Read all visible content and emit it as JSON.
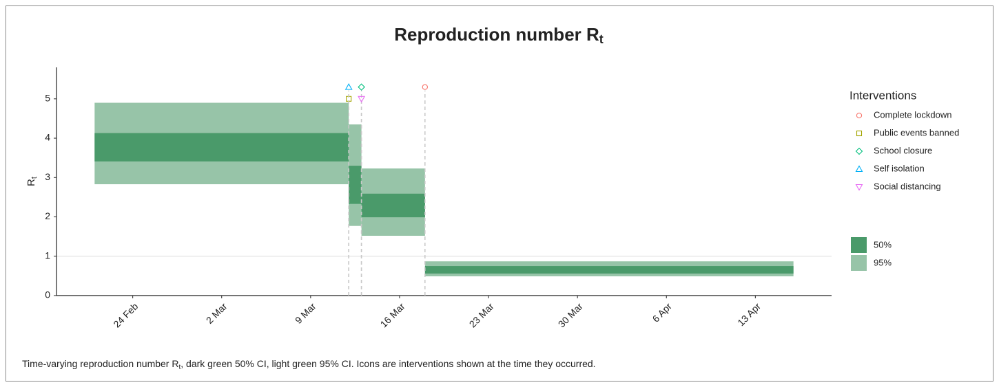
{
  "chart_data": {
    "type": "band",
    "title": "Reproduction number R",
    "title_sub": "t",
    "y_label": "R",
    "y_label_sub": "t",
    "caption_start": "Time-varying reproduction number R",
    "caption_sub": "t",
    "caption_end": ", dark green 50% CI, light green 95% CI. Icons are interventions shown at the time they occurred.",
    "xlim": [
      "02-18",
      "04-19"
    ],
    "xticks": [
      {
        "value": "02-24",
        "label": "24 Feb"
      },
      {
        "value": "03-02",
        "label": "2 Mar"
      },
      {
        "value": "03-09",
        "label": "9 Mar"
      },
      {
        "value": "03-16",
        "label": "16 Mar"
      },
      {
        "value": "03-23",
        "label": "23 Mar"
      },
      {
        "value": "03-30",
        "label": "30 Mar"
      },
      {
        "value": "04-06",
        "label": "6 Apr"
      },
      {
        "value": "04-13",
        "label": "13 Apr"
      }
    ],
    "ylim": [
      0,
      5.8
    ],
    "yticks": [
      0,
      1,
      2,
      3,
      4,
      5
    ],
    "hline": 1,
    "x_start": [
      "02-21",
      "03-12",
      "03-13",
      "03-18"
    ],
    "x_end": [
      "03-12",
      "03-13",
      "03-18",
      "04-16"
    ],
    "series": [
      {
        "name": "50%",
        "color": "#4a9a6a",
        "lower": [
          3.41,
          2.33,
          1.99,
          0.56
        ],
        "upper": [
          4.13,
          3.3,
          2.59,
          0.75
        ]
      },
      {
        "name": "95%",
        "color": "#97c4a8",
        "lower": [
          2.83,
          1.77,
          1.52,
          0.49
        ],
        "upper": [
          4.9,
          4.35,
          3.23,
          0.87
        ]
      }
    ],
    "interventions": {
      "title": "Interventions",
      "items": [
        {
          "name": "Complete lockdown",
          "date": "03-18",
          "y": 5.3,
          "shape": "circle",
          "color": "#f8766d"
        },
        {
          "name": "Public events banned",
          "date": "03-12",
          "y": 5.0,
          "shape": "square",
          "color": "#a3a500"
        },
        {
          "name": "School closure",
          "date": "03-13",
          "y": 5.3,
          "shape": "diamond",
          "color": "#00bf7d"
        },
        {
          "name": "Self isolation",
          "date": "03-12",
          "y": 5.3,
          "shape": "triangle",
          "color": "#00b0f6"
        },
        {
          "name": "Social distancing",
          "date": "03-13",
          "y": 5.0,
          "shape": "triangle-down",
          "color": "#e76bf3"
        }
      ]
    }
  }
}
